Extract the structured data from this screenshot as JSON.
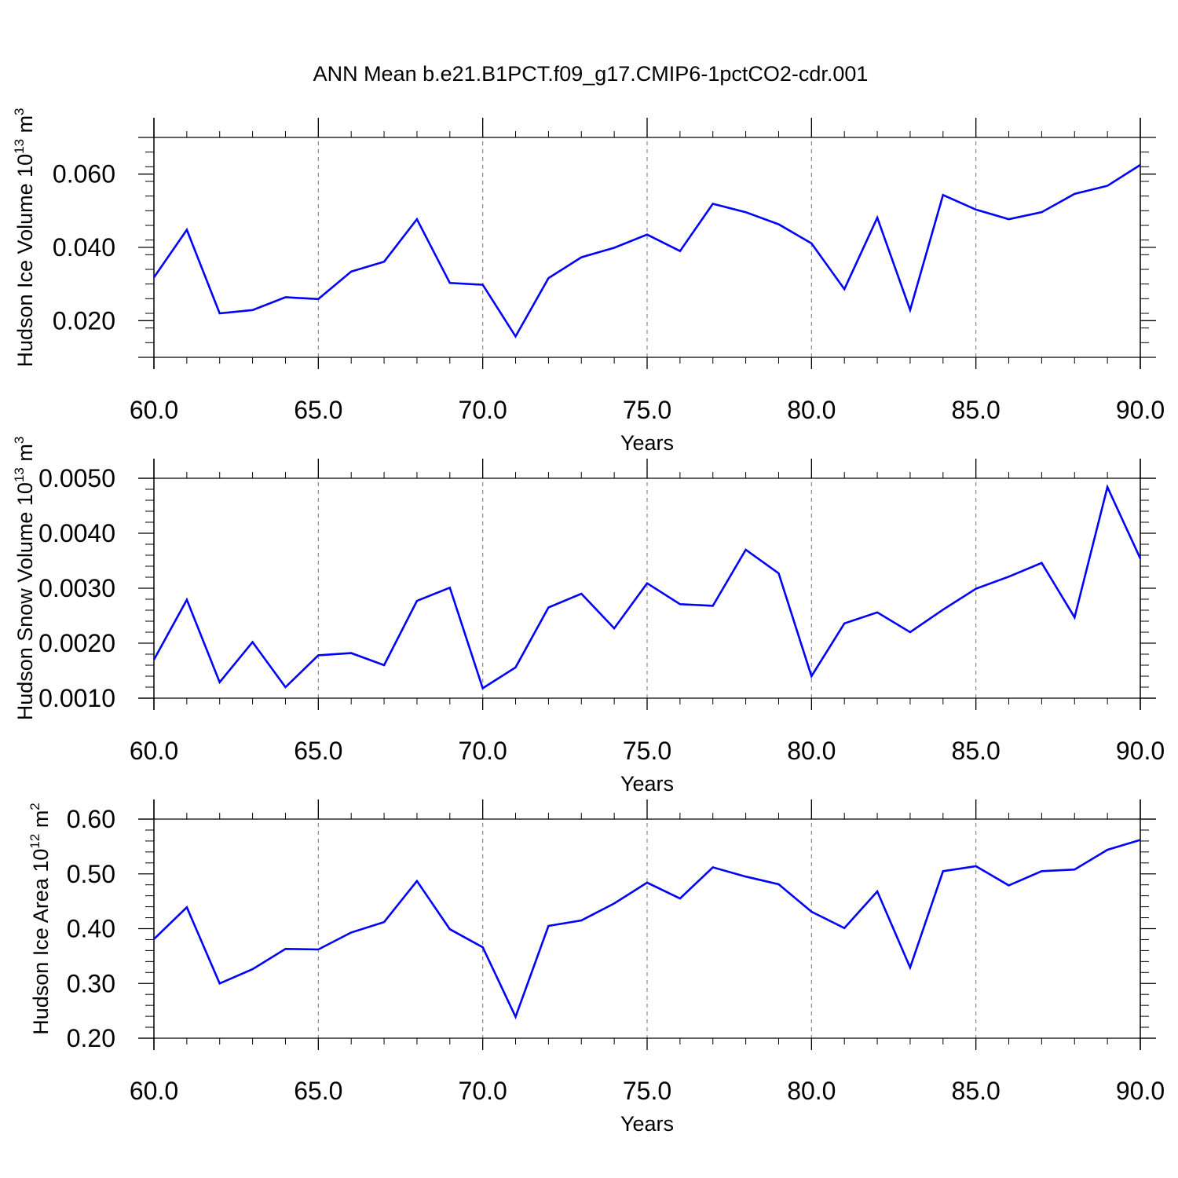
{
  "title": "ANN Mean b.e21.B1PCT.f09_g17.CMIP6-1pctCO2-cdr.001",
  "line_color": "#0000ff",
  "chart_data": [
    {
      "type": "line",
      "ylabel": "Hudson Ice Volume 10",
      "ylabel_sup": "13",
      "ylabel_unit": "m",
      "ylabel_unit_sup": "3",
      "xlabel": "Years",
      "xlim": [
        60,
        90
      ],
      "ylim": [
        0.01,
        0.07
      ],
      "x_ticks": [
        "60.0",
        "65.0",
        "70.0",
        "75.0",
        "80.0",
        "85.0",
        "90.0"
      ],
      "y_ticks": [
        {
          "v": 0.02,
          "label": "0.020"
        },
        {
          "v": 0.04,
          "label": "0.040"
        },
        {
          "v": 0.06,
          "label": "0.060"
        }
      ],
      "grid": "vertical dashed at major x ticks",
      "series": [
        {
          "x": [
            60,
            61,
            62,
            63,
            64,
            65,
            66,
            67,
            68,
            69,
            70,
            71,
            72,
            73,
            74,
            75,
            76,
            77,
            78,
            79,
            80,
            81,
            82,
            83,
            84,
            85,
            86,
            87,
            88,
            89,
            90
          ],
          "values": [
            0.0318,
            0.0448,
            0.022,
            0.0229,
            0.0264,
            0.0259,
            0.0334,
            0.0361,
            0.0477,
            0.0303,
            0.0298,
            0.0157,
            0.0316,
            0.0373,
            0.0399,
            0.0435,
            0.039,
            0.0519,
            0.0496,
            0.0463,
            0.0411,
            0.0286,
            0.0481,
            0.0229,
            0.0543,
            0.0503,
            0.0477,
            0.0496,
            0.0546,
            0.0568,
            0.0625
          ]
        }
      ]
    },
    {
      "type": "line",
      "ylabel": "Hudson Snow Volume 10",
      "ylabel_sup": "13",
      "ylabel_unit": "m",
      "ylabel_unit_sup": "3",
      "xlabel": "Years",
      "xlim": [
        60,
        90
      ],
      "ylim": [
        0.001,
        0.005
      ],
      "x_ticks": [
        "60.0",
        "65.0",
        "70.0",
        "75.0",
        "80.0",
        "85.0",
        "90.0"
      ],
      "y_ticks": [
        {
          "v": 0.001,
          "label": "0.0010"
        },
        {
          "v": 0.002,
          "label": "0.0020"
        },
        {
          "v": 0.003,
          "label": "0.0030"
        },
        {
          "v": 0.004,
          "label": "0.0040"
        },
        {
          "v": 0.005,
          "label": "0.0050"
        }
      ],
      "grid": "vertical dashed at major x ticks",
      "series": [
        {
          "x": [
            60,
            61,
            62,
            63,
            64,
            65,
            66,
            67,
            68,
            69,
            70,
            71,
            72,
            73,
            74,
            75,
            76,
            77,
            78,
            79,
            80,
            81,
            82,
            83,
            84,
            85,
            86,
            87,
            88,
            89,
            90
          ],
          "values": [
            0.0017,
            0.00279,
            0.00129,
            0.00202,
            0.0012,
            0.00178,
            0.00182,
            0.0016,
            0.00277,
            0.00301,
            0.00118,
            0.00156,
            0.00265,
            0.0029,
            0.00227,
            0.00309,
            0.00271,
            0.00268,
            0.0037,
            0.00327,
            0.0014,
            0.00236,
            0.00256,
            0.0022,
            0.00261,
            0.00299,
            0.00321,
            0.00346,
            0.00247,
            0.00484,
            0.00354
          ]
        }
      ]
    },
    {
      "type": "line",
      "ylabel": "Hudson Ice Area 10",
      "ylabel_sup": "12",
      "ylabel_unit": "m",
      "ylabel_unit_sup": "2",
      "xlabel": "Years",
      "xlim": [
        60,
        90
      ],
      "ylim": [
        0.2,
        0.6
      ],
      "x_ticks": [
        "60.0",
        "65.0",
        "70.0",
        "75.0",
        "80.0",
        "85.0",
        "90.0"
      ],
      "y_ticks": [
        {
          "v": 0.2,
          "label": "0.20"
        },
        {
          "v": 0.3,
          "label": "0.30"
        },
        {
          "v": 0.4,
          "label": "0.40"
        },
        {
          "v": 0.5,
          "label": "0.50"
        },
        {
          "v": 0.6,
          "label": "0.60"
        }
      ],
      "grid": "vertical dashed at major x ticks",
      "series": [
        {
          "x": [
            60,
            61,
            62,
            63,
            64,
            65,
            66,
            67,
            68,
            69,
            70,
            71,
            72,
            73,
            74,
            75,
            76,
            77,
            78,
            79,
            80,
            81,
            82,
            83,
            84,
            85,
            86,
            87,
            88,
            89,
            90
          ],
          "values": [
            0.381,
            0.439,
            0.3,
            0.326,
            0.363,
            0.362,
            0.393,
            0.412,
            0.487,
            0.399,
            0.366,
            0.239,
            0.405,
            0.415,
            0.446,
            0.484,
            0.455,
            0.512,
            0.495,
            0.481,
            0.431,
            0.401,
            0.468,
            0.329,
            0.505,
            0.514,
            0.479,
            0.505,
            0.508,
            0.544,
            0.562
          ]
        }
      ]
    }
  ]
}
